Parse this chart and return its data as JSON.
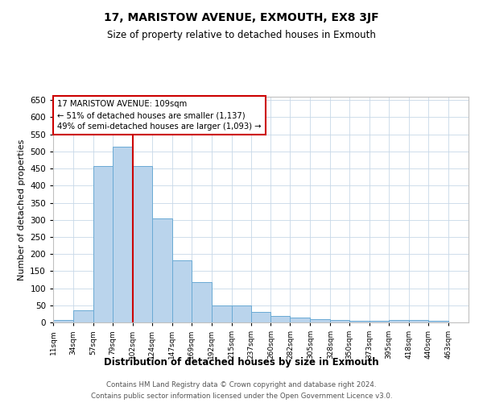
{
  "title": "17, MARISTOW AVENUE, EXMOUTH, EX8 3JF",
  "subtitle": "Size of property relative to detached houses in Exmouth",
  "xlabel": "Distribution of detached houses by size in Exmouth",
  "ylabel": "Number of detached properties",
  "footer_line1": "Contains HM Land Registry data © Crown copyright and database right 2024.",
  "footer_line2": "Contains public sector information licensed under the Open Government Licence v3.0.",
  "tick_labels": [
    "11sqm",
    "34sqm",
    "57sqm",
    "79sqm",
    "102sqm",
    "124sqm",
    "147sqm",
    "169sqm",
    "192sqm",
    "215sqm",
    "237sqm",
    "260sqm",
    "282sqm",
    "305sqm",
    "328sqm",
    "350sqm",
    "373sqm",
    "395sqm",
    "418sqm",
    "440sqm",
    "463sqm"
  ],
  "bar_heights": [
    7,
    35,
    457,
    514,
    457,
    305,
    181,
    118,
    49,
    49,
    30,
    20,
    15,
    9,
    7,
    4,
    4,
    7,
    7,
    5
  ],
  "bar_color": "#bad4ec",
  "bar_edge_color": "#6aaad4",
  "annotation_line1": "17 MARISTOW AVENUE: 109sqm",
  "annotation_line2": "← 51% of detached houses are smaller (1,137)",
  "annotation_line3": "49% of semi-detached houses are larger (1,093) →",
  "annotation_box_color": "#cc0000",
  "red_line_bin_index": 4,
  "ylim": [
    0,
    660
  ],
  "bin_edges": [
    11,
    34,
    57,
    79,
    102,
    124,
    147,
    169,
    192,
    215,
    237,
    260,
    282,
    305,
    328,
    350,
    373,
    395,
    418,
    440,
    463
  ]
}
